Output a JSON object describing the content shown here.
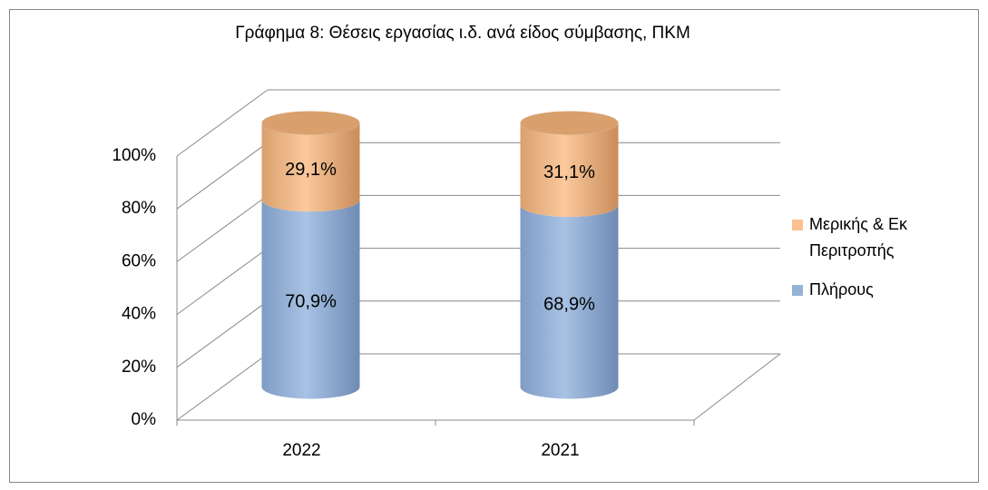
{
  "chart_data": {
    "type": "bar3d_stacked",
    "title": "Γράφημα 8: Θέσεις εργασίας ι.δ. ανά είδος σύμβασης, ΠΚΜ",
    "categories": [
      "2022",
      "2021"
    ],
    "series": [
      {
        "name": "Πλήρους",
        "color": "#95b3d7",
        "values": [
          70.9,
          68.9
        ],
        "value_labels": [
          "70,9%",
          "68,9%"
        ]
      },
      {
        "name": "Μερικής & Εκ Περιτροπής",
        "color": "#fac090",
        "values": [
          29.1,
          31.1
        ],
        "value_labels": [
          "29,1%",
          "31,1%"
        ]
      }
    ],
    "ylim": [
      0,
      100
    ],
    "yticks": [
      {
        "value": 0,
        "label": "0%"
      },
      {
        "value": 20,
        "label": "20%"
      },
      {
        "value": 40,
        "label": "40%"
      },
      {
        "value": 60,
        "label": "60%"
      },
      {
        "value": 80,
        "label": "80%"
      },
      {
        "value": 100,
        "label": "100%"
      }
    ],
    "grid": true,
    "legend": "right"
  }
}
